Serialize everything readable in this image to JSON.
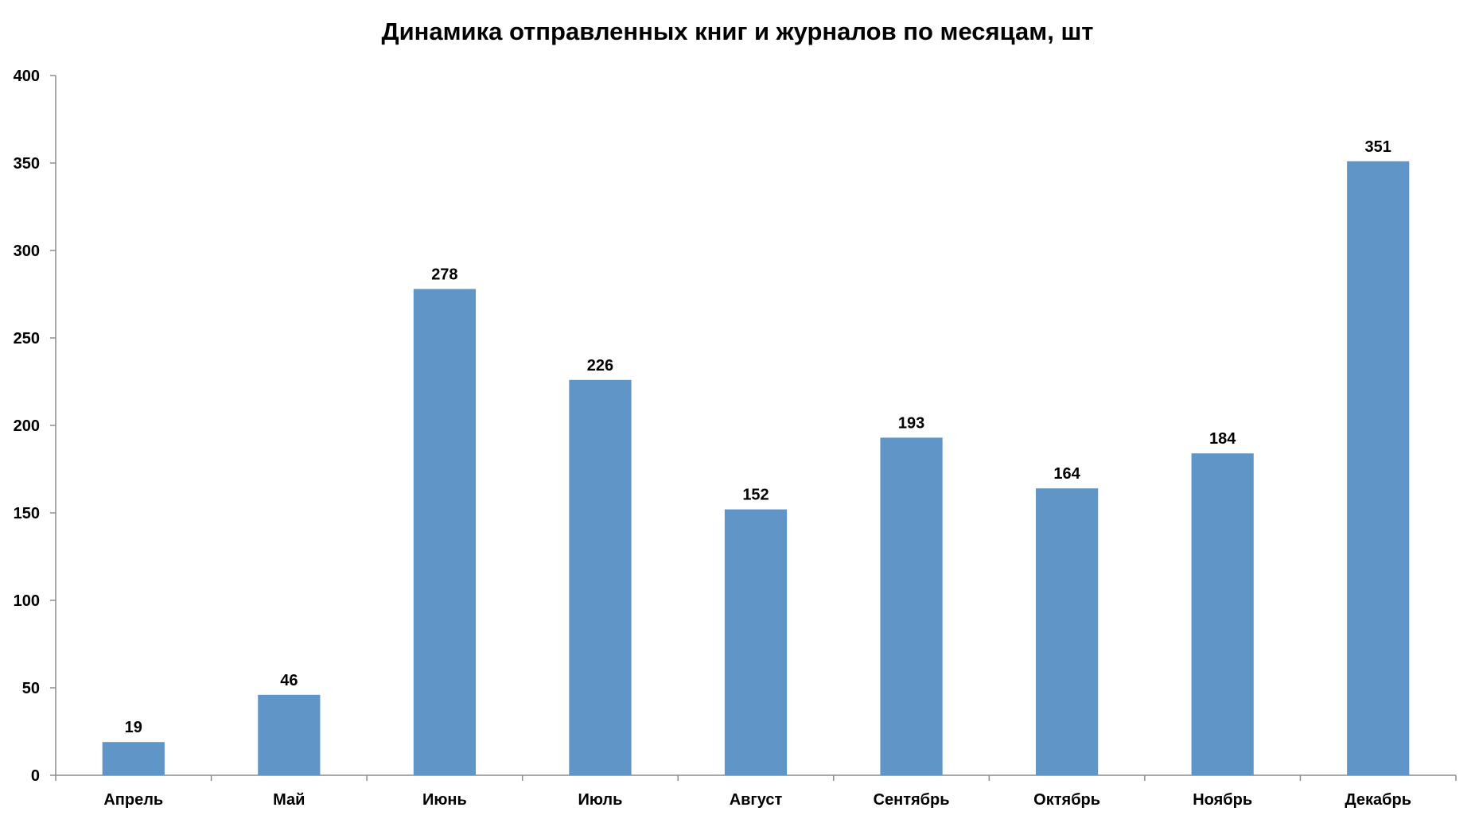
{
  "chart_data": {
    "type": "bar",
    "title": "Динамика отправленных книг и журналов по месяцам, шт",
    "xlabel": "",
    "ylabel": "",
    "categories": [
      "Апрель",
      "Май",
      "Июнь",
      "Июль",
      "Август",
      "Сентябрь",
      "Октябрь",
      "Ноябрь",
      "Декабрь"
    ],
    "values": [
      19,
      46,
      278,
      226,
      152,
      193,
      164,
      184,
      351
    ],
    "data_labels": [
      "19",
      "46",
      "278",
      "226",
      "152",
      "193",
      "164",
      "184",
      "351"
    ],
    "ylim": [
      0,
      400
    ],
    "yticks": [
      0,
      50,
      100,
      150,
      200,
      250,
      300,
      350,
      400
    ],
    "ytick_labels": [
      "0",
      "50",
      "100",
      "150",
      "200",
      "250",
      "300",
      "350",
      "400"
    ],
    "grid": false,
    "legend": "none",
    "bar_color": "#6096c7",
    "axis_color": "#8c8c8c",
    "text_color": "#000000"
  }
}
